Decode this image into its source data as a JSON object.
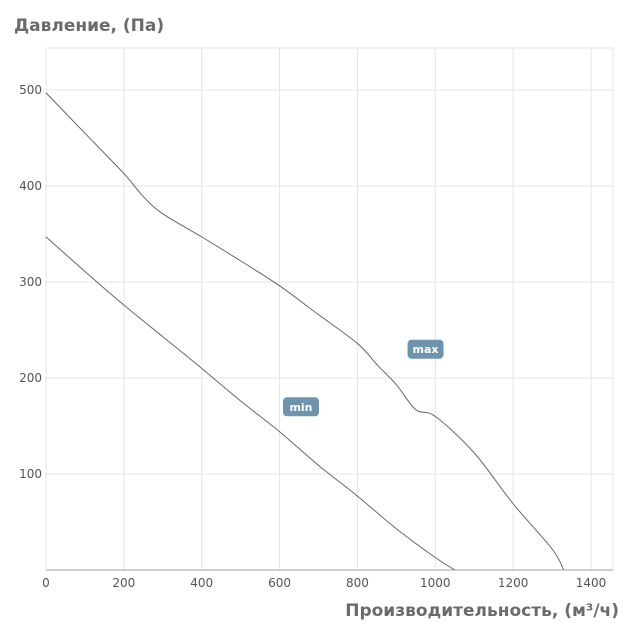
{
  "chart_data": {
    "type": "line",
    "ylabel": "Давление, (Па)",
    "xlabel": "Производительность, (м³/ч)",
    "xlim": [
      0,
      1400
    ],
    "ylim": [
      0,
      500
    ],
    "grid": true,
    "x_ticks": [
      0,
      200,
      400,
      600,
      800,
      1000,
      1200,
      1400
    ],
    "y_ticks": [
      100,
      200,
      300,
      400,
      500
    ],
    "series": [
      {
        "name": "max",
        "color": "#5f6a72",
        "x": [
          0,
          100,
          200,
          250,
          300,
          400,
          500,
          600,
          700,
          800,
          850,
          900,
          950,
          1000,
          1100,
          1200,
          1300,
          1330
        ],
        "y": [
          497,
          455,
          413,
          389,
          371,
          347,
          322,
          296,
          266,
          236,
          214,
          193,
          167,
          160,
          122,
          69,
          22,
          0
        ]
      },
      {
        "name": "min",
        "color": "#5f6a72",
        "x": [
          0,
          100,
          200,
          300,
          400,
          500,
          600,
          700,
          800,
          900,
          1000,
          1050
        ],
        "y": [
          347,
          311,
          276,
          243,
          210,
          176,
          144,
          109,
          77,
          43,
          13,
          0
        ]
      }
    ],
    "annotations": [
      {
        "series": "max",
        "text": "max",
        "x": 975,
        "y": 230
      },
      {
        "series": "min",
        "text": "min",
        "x": 655,
        "y": 170
      }
    ]
  }
}
